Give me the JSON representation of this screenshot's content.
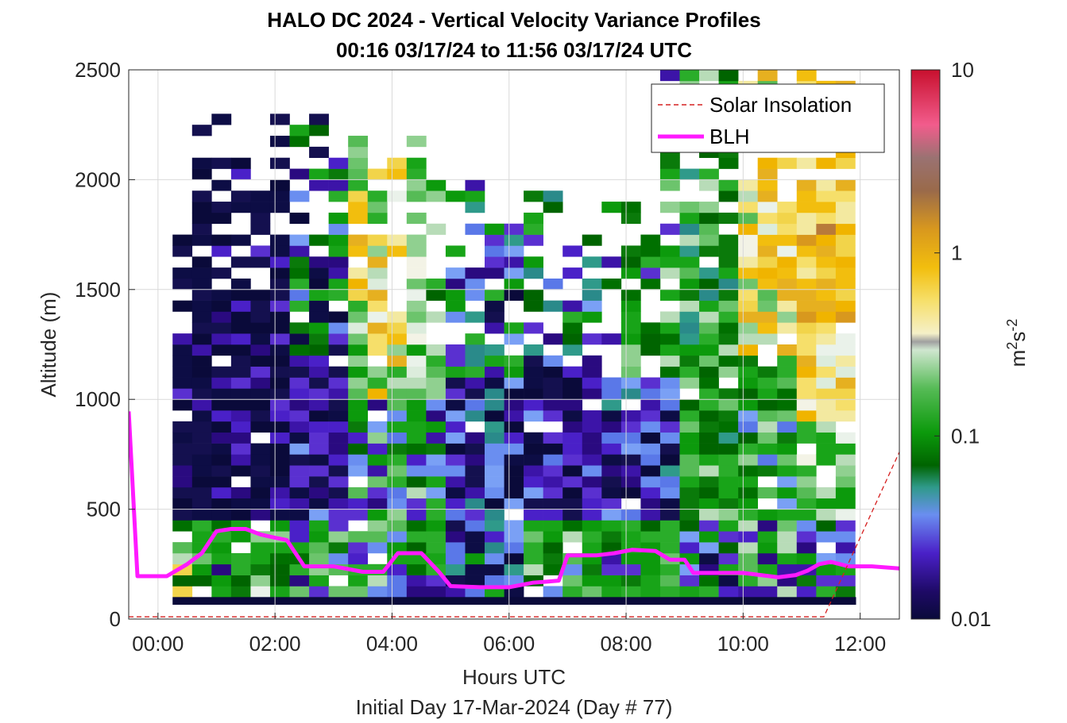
{
  "chart_data": {
    "type": "heatmap",
    "title": "HALO DC 2024 - Vertical Velocity Variance Profiles",
    "subtitle": "00:16 03/17/24 to 11:56 03/17/24  UTC",
    "xlabel": "Hours UTC",
    "xlabel2": "Initial Day 17-Mar-2024 (Day # 77)",
    "ylabel": "Altitude (m)",
    "xlim": [
      -0.5,
      12.67
    ],
    "ylim": [
      0,
      2500
    ],
    "x_ticks": [
      {
        "value": 0,
        "label": "00:00"
      },
      {
        "value": 2,
        "label": "02:00"
      },
      {
        "value": 4,
        "label": "04:00"
      },
      {
        "value": 6,
        "label": "06:00"
      },
      {
        "value": 8,
        "label": "08:00"
      },
      {
        "value": 10,
        "label": "10:00"
      },
      {
        "value": 12,
        "label": "12:00"
      }
    ],
    "y_ticks": [
      {
        "value": 0,
        "label": "0"
      },
      {
        "value": 500,
        "label": "500"
      },
      {
        "value": 1000,
        "label": "1000"
      },
      {
        "value": 1500,
        "label": "1500"
      },
      {
        "value": 2000,
        "label": "2000"
      },
      {
        "value": 2500,
        "label": "2500"
      }
    ],
    "grid": true,
    "colorbar": {
      "label": "m2s-2",
      "scale": "log",
      "range": [
        0.01,
        10
      ],
      "ticks": [
        {
          "value": 0.01,
          "label": "0.01"
        },
        {
          "value": 0.1,
          "label": "0.1"
        },
        {
          "value": 1,
          "label": "1"
        },
        {
          "value": 10,
          "label": "10"
        }
      ]
    },
    "legend": {
      "placement": "top-right",
      "entries": [
        {
          "name": "Solar Insolation",
          "style": "dashed",
          "color": "#d62020"
        },
        {
          "name": "BLH",
          "style": "solid",
          "color": "#ff1aff"
        }
      ]
    },
    "heatmap": {
      "x_start": 0.25,
      "x_end": 11.93,
      "dx": 0.3333,
      "y_start": 100,
      "dy": 50,
      "n_cols": 35,
      "n_rows": 48
    },
    "series": [
      {
        "name": "BLH",
        "x": [
          -0.5,
          -0.35,
          0.15,
          0.5,
          0.75,
          1.0,
          1.25,
          1.5,
          1.75,
          2.0,
          2.2,
          2.5,
          3.0,
          3.5,
          3.85,
          4.1,
          4.5,
          4.8,
          5.0,
          5.5,
          6.0,
          6.4,
          6.65,
          6.85,
          7.0,
          7.5,
          7.8,
          8.1,
          8.5,
          8.75,
          9.0,
          9.15,
          9.5,
          10.0,
          10.3,
          10.6,
          10.9,
          11.1,
          11.3,
          11.5,
          11.8,
          12.2,
          12.67
        ],
        "y": [
          945,
          195,
          195,
          250,
          300,
          400,
          410,
          410,
          385,
          370,
          360,
          240,
          240,
          215,
          215,
          300,
          300,
          215,
          150,
          145,
          145,
          165,
          170,
          175,
          290,
          290,
          300,
          315,
          310,
          270,
          270,
          210,
          210,
          210,
          200,
          190,
          200,
          220,
          250,
          260,
          240,
          240,
          230
        ]
      },
      {
        "name": "Solar Insolation",
        "x": [
          -0.5,
          11.38,
          12.67
        ],
        "y": [
          10,
          10,
          760
        ]
      }
    ]
  }
}
